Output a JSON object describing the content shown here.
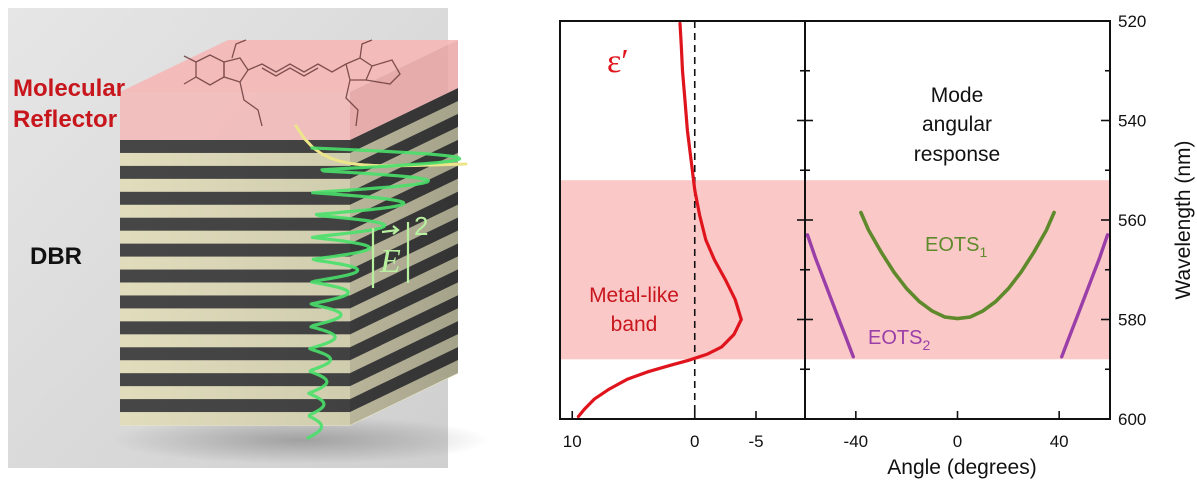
{
  "colors": {
    "reflector_pink": "#f6b7b7",
    "band_pink": "#fbc8c8",
    "red_curve": "#e0141c",
    "eots1_green": "#5e8a2c",
    "eots2_purple": "#9a3fa8",
    "field_green": "#49e06a",
    "yellow_decay": "#ece58a",
    "dbr_dark": "#4a4a4a",
    "dbr_light": "#ece8c6"
  },
  "left_panel": {
    "reflector_label_line1": "Molecular",
    "reflector_label_line2": "Reflector",
    "dbr_label": "DBR",
    "field_symbol": "E",
    "field_exponent": "2"
  },
  "chart_data": [
    {
      "type": "line",
      "name": "permittivity",
      "series_label": "ε′",
      "x": [
        9.5,
        9.0,
        8.2,
        7.0,
        5.5,
        3.8,
        2.0,
        0.5,
        -1.0,
        -2.2,
        -3.2,
        -3.8,
        -3.3,
        -2.5,
        -1.6,
        -0.9,
        -0.4,
        0,
        0.3,
        0.6,
        0.8,
        1.0,
        1.1,
        1.2
      ],
      "y": [
        599.5,
        598.0,
        596.0,
        594.0,
        592.0,
        590.5,
        589.2,
        588.2,
        587.0,
        585.5,
        583.0,
        580.0,
        576.0,
        572.0,
        568.0,
        564.0,
        559.0,
        554.0,
        548.0,
        542.0,
        536.0,
        530.0,
        525.0,
        520.5
      ],
      "xlim": [
        11,
        -9
      ],
      "ylim": [
        520,
        600
      ],
      "ylabel": "Wavelength (nm)",
      "xticks": [
        10,
        0,
        -5
      ],
      "zero_line": "dashed",
      "band_range": [
        552,
        588
      ],
      "band_label_line1": "Metal-like",
      "band_label_line2": "band"
    },
    {
      "type": "line",
      "name": "mode-angular-response",
      "title_line1": "Mode",
      "title_line2": "angular",
      "title_line3": "response",
      "xlabel": "Angle (degrees)",
      "ylabel": "Wavelength (nm)",
      "xlim": [
        -60,
        60
      ],
      "ylim": [
        520,
        600
      ],
      "xticks": [
        -40,
        0,
        40
      ],
      "yticks": [
        520,
        540,
        560,
        580,
        600
      ],
      "band_range": [
        552,
        588
      ],
      "series": [
        {
          "name": "EOTS",
          "subscript": "1",
          "x": [
            -38,
            -35,
            -30,
            -25,
            -20,
            -15,
            -10,
            -5,
            0,
            5,
            10,
            15,
            20,
            25,
            30,
            35,
            38
          ],
          "y": [
            558.5,
            562.0,
            566.5,
            570.5,
            573.8,
            576.4,
            578.3,
            579.5,
            579.8,
            579.5,
            578.3,
            576.4,
            573.8,
            570.5,
            566.5,
            562.0,
            558.5
          ]
        },
        {
          "name": "EOTS",
          "subscript": "2",
          "left": {
            "x": [
              -59,
              -56,
              -53,
              -50,
              -47,
              -44,
              -41
            ],
            "y": [
              563,
              567.5,
              571.5,
              575.5,
              579.5,
              583.5,
              587.5
            ]
          },
          "right": {
            "x": [
              41,
              44,
              47,
              50,
              53,
              56,
              59
            ],
            "y": [
              587.5,
              583.5,
              579.5,
              575.5,
              571.5,
              567.5,
              563
            ]
          }
        }
      ]
    }
  ]
}
